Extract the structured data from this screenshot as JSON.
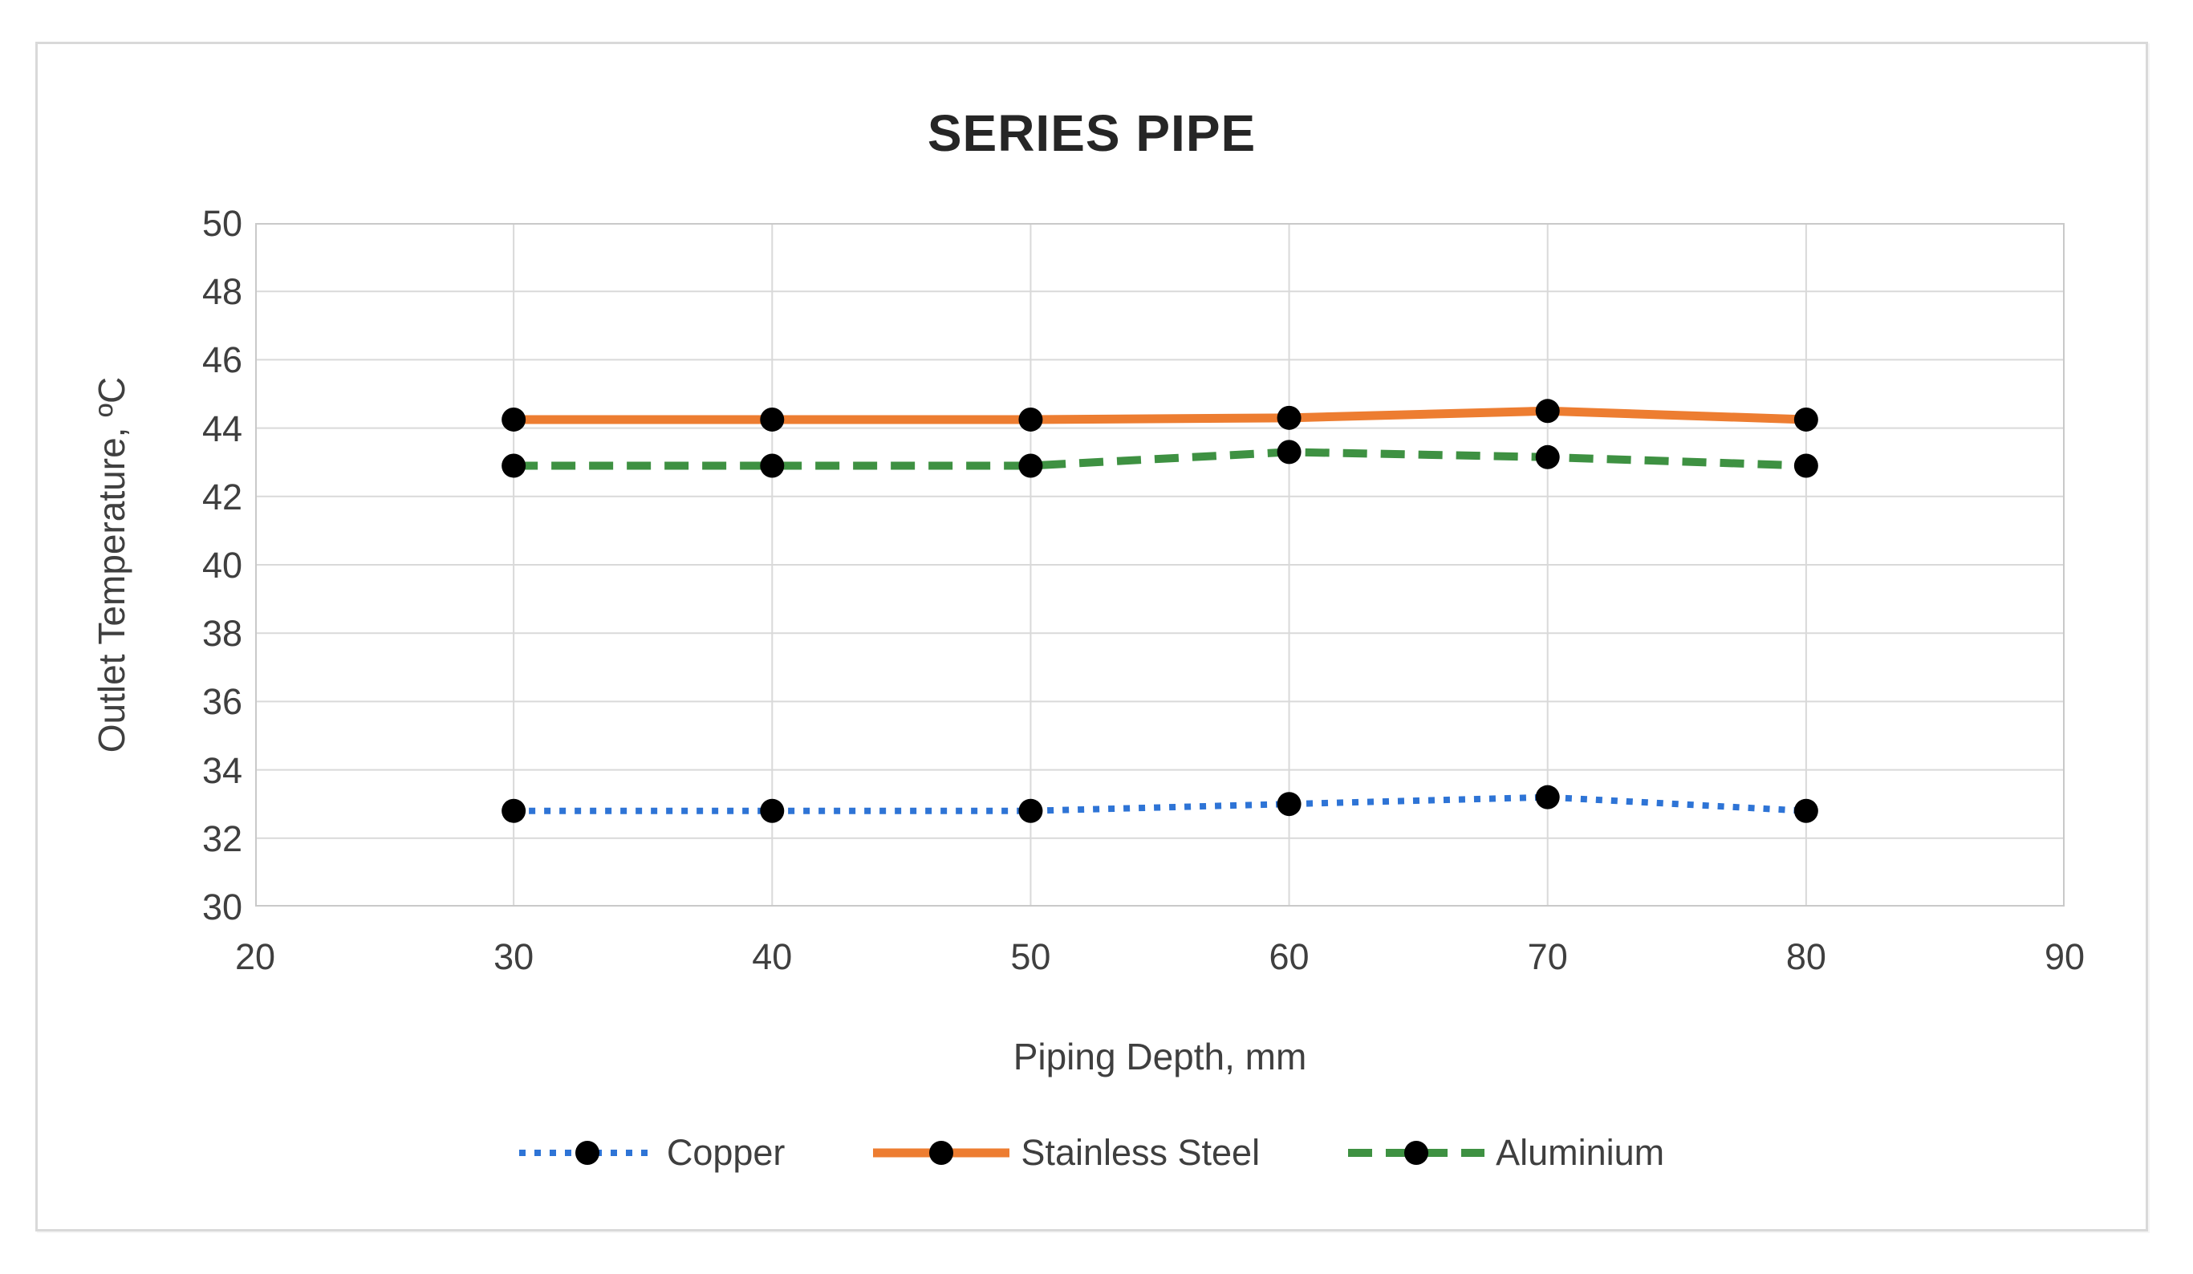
{
  "chart_data": {
    "type": "line",
    "title": "SERIES PIPE",
    "xlabel": "Piping Depth, mm",
    "ylabel": "Outlet Temperature, ºC",
    "x": [
      30,
      40,
      50,
      60,
      70,
      80
    ],
    "xlim": [
      20,
      90
    ],
    "ylim": [
      30,
      50
    ],
    "x_ticks": [
      20,
      30,
      40,
      50,
      60,
      70,
      80,
      90
    ],
    "y_ticks": [
      30,
      32,
      34,
      36,
      38,
      40,
      42,
      44,
      46,
      48,
      50
    ],
    "grid": true,
    "legend_position": "bottom-center",
    "marker": "filled-circle",
    "marker_color": "#000000",
    "series": [
      {
        "name": "Copper",
        "style": "dotted",
        "color": "#2e74d6",
        "values": [
          32.8,
          32.8,
          32.8,
          33.0,
          33.2,
          32.8
        ]
      },
      {
        "name": "Stainless Steel",
        "style": "solid",
        "color": "#ed7d31",
        "values": [
          44.25,
          44.25,
          44.25,
          44.3,
          44.5,
          44.25
        ]
      },
      {
        "name": "Aluminium",
        "style": "dashed",
        "color": "#3e9142",
        "values": [
          42.9,
          42.9,
          42.9,
          43.3,
          43.15,
          42.9
        ]
      }
    ]
  },
  "colors": {
    "frame_border": "#d9d9d9",
    "gridline": "#d9d9d9",
    "plot_border": "#c9c9c9",
    "title_text": "#262626",
    "label_text": "#3f3f3f",
    "background": "#ffffff"
  }
}
